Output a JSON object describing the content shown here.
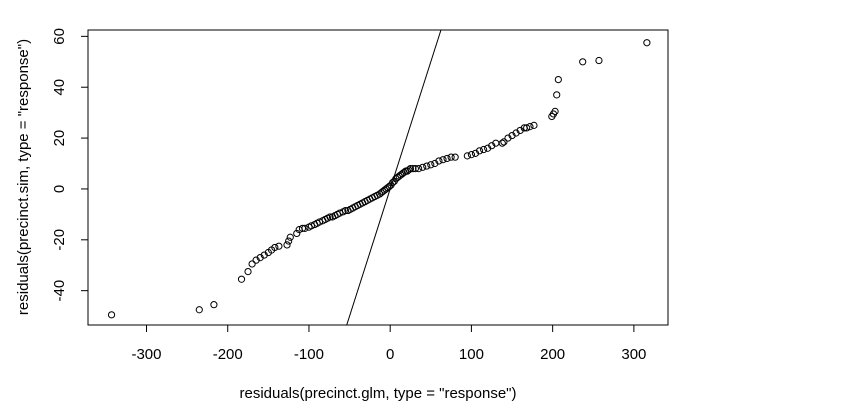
{
  "chart_data": {
    "type": "scatter",
    "title": "",
    "xlabel": "residuals(precinct.glm, type = \"response\")",
    "ylabel": "residuals(precinct.sim, type = \"response\")",
    "xlim": [
      -372,
      342
    ],
    "ylim": [
      -53.5,
      62.5
    ],
    "xticks": [
      -300,
      -200,
      -100,
      0,
      100,
      200,
      300
    ],
    "yticks": [
      -40,
      -20,
      0,
      20,
      40,
      60
    ],
    "marker": "open-circle",
    "grid": false,
    "legend": "none",
    "reference_line": {
      "slope": 1,
      "intercept": 0
    },
    "x": [
      -343,
      -235,
      -217,
      -183,
      -175,
      -170,
      -165,
      -160,
      -155,
      -150,
      -146,
      -142,
      -137,
      -127,
      -125,
      -123,
      -115,
      -112,
      -108,
      -105,
      -100,
      -97,
      -93,
      -90,
      -87,
      -83,
      -80,
      -77,
      -74,
      -71,
      -68,
      -65,
      -62,
      -58,
      -55,
      -52,
      -49,
      -46,
      -43,
      -40,
      -37,
      -34,
      -31,
      -28,
      -25,
      -22,
      -19,
      -16,
      -13,
      -11,
      -9,
      -7,
      -5,
      -3,
      -1,
      1,
      3,
      5,
      7,
      9,
      11,
      13,
      15,
      17,
      19,
      21,
      23,
      25,
      28,
      31,
      35,
      40,
      45,
      50,
      55,
      60,
      65,
      70,
      75,
      80,
      95,
      100,
      105,
      110,
      115,
      120,
      125,
      130,
      138,
      140,
      145,
      150,
      155,
      160,
      165,
      168,
      172,
      177,
      199,
      201,
      203,
      205,
      207,
      237,
      257,
      316
    ],
    "y": [
      -49.5,
      -47.5,
      -45.5,
      -35.5,
      -32.5,
      -29.5,
      -28,
      -27,
      -26,
      -25,
      -24,
      -23,
      -22.5,
      -22,
      -20.5,
      -19,
      -17.5,
      -16,
      -15.5,
      -15.5,
      -15,
      -14.5,
      -14,
      -13.5,
      -13,
      -12.5,
      -12,
      -11.5,
      -11,
      -11,
      -10.5,
      -10,
      -9.5,
      -9,
      -8.5,
      -8.5,
      -8,
      -7.5,
      -7,
      -6.5,
      -6,
      -5.5,
      -5,
      -4.5,
      -4,
      -3.5,
      -3,
      -2.5,
      -2,
      -1.5,
      -1,
      -0.5,
      0,
      0.5,
      1,
      1.5,
      2.5,
      3,
      4,
      4.5,
      5,
      5.5,
      6,
      6.5,
      7,
      7,
      7.5,
      8,
      8,
      8,
      8,
      8.5,
      9,
      9.5,
      10,
      11,
      11.5,
      12,
      12.5,
      12.5,
      13,
      13.5,
      14,
      15,
      15.5,
      16,
      17,
      18,
      18,
      18.5,
      20,
      21,
      22,
      23,
      24,
      24,
      24.5,
      25,
      28.5,
      29.5,
      30.5,
      37,
      43,
      50,
      50.5,
      57.5
    ]
  }
}
